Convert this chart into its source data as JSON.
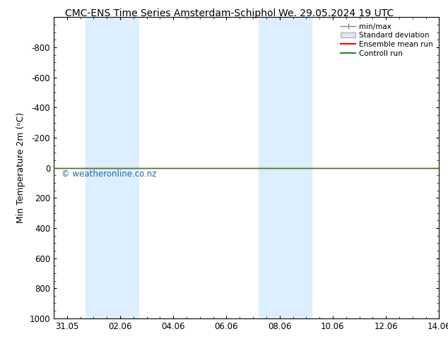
{
  "title_left": "CMC-ENS Time Series Amsterdam-Schiphol",
  "title_right": "We. 29.05.2024 19 UTC",
  "ylabel": "Min Temperature 2m (ᵒC)",
  "ylim_bottom": 1000,
  "ylim_top": -1000,
  "yticks": [
    -800,
    -600,
    -400,
    -200,
    0,
    200,
    400,
    600,
    800,
    1000
  ],
  "xlim": [
    0.0,
    14.0
  ],
  "xtick_labels": [
    "31.05",
    "02.06",
    "04.06",
    "06.06",
    "08.06",
    "10.06",
    "12.06",
    "14.06"
  ],
  "xtick_positions": [
    0.5,
    2.5,
    4.5,
    6.5,
    8.5,
    10.5,
    12.5,
    14.5
  ],
  "shaded_bands": [
    [
      1.2,
      2.2
    ],
    [
      2.2,
      3.2
    ],
    [
      7.7,
      8.7
    ],
    [
      8.7,
      9.7
    ]
  ],
  "shade_color": "#ddeeff",
  "shade_color2": "#cce0f5",
  "control_run_y": 0,
  "control_run_color": "#228B22",
  "ensemble_mean_color": "#ff0000",
  "watermark": "© weatheronline.co.nz",
  "watermark_color": "#1155aa",
  "background_color": "#ffffff",
  "legend_items": [
    "min/max",
    "Standard deviation",
    "Ensemble mean run",
    "Controll run"
  ],
  "legend_line_colors": [
    "#888888",
    "#cccccc",
    "#ff0000",
    "#228B22"
  ],
  "tick_label_fontsize": 8.5,
  "ylabel_fontsize": 9,
  "title_fontsize": 10
}
